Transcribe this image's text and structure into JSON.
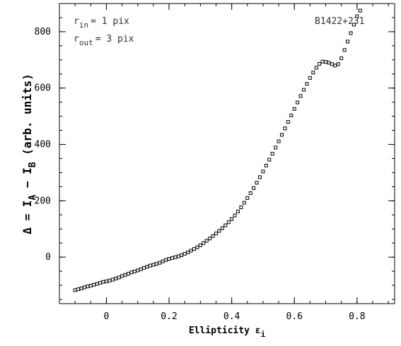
{
  "chart_data": {
    "type": "scatter",
    "annotations": {
      "r_in": {
        "main": "r",
        "sub": "in",
        "rest": "= 1 pix"
      },
      "r_out": {
        "main": "r",
        "sub": "out",
        "rest": "= 3 pix"
      },
      "object": "B1422+231"
    },
    "xlabel": {
      "main": "Ellipticity ε",
      "sub": "i"
    },
    "ylabel": {
      "p1": "Δ = I",
      "s1": "A",
      "p2": " − I",
      "s2": "B",
      "p3": " (arb. units)"
    },
    "xlim": [
      -0.15,
      0.92
    ],
    "ylim": [
      -165,
      900
    ],
    "xticks": [
      0,
      0.2,
      0.4,
      0.6,
      0.8
    ],
    "xtick_labels": [
      "0",
      "0.2",
      "0.4",
      "0.6",
      "0.8"
    ],
    "yticks": [
      0,
      200,
      400,
      600,
      800
    ],
    "ytick_labels": [
      "0",
      "200",
      "400",
      "600",
      "800"
    ],
    "x_minor_step": 0.05,
    "y_minor_step": 50,
    "points": [
      [
        -0.1,
        -117
      ],
      [
        -0.09,
        -114
      ],
      [
        -0.08,
        -111
      ],
      [
        -0.07,
        -107
      ],
      [
        -0.06,
        -104
      ],
      [
        -0.05,
        -101
      ],
      [
        -0.04,
        -98
      ],
      [
        -0.03,
        -95
      ],
      [
        -0.02,
        -91
      ],
      [
        -0.01,
        -88
      ],
      [
        0.0,
        -86
      ],
      [
        0.01,
        -83
      ],
      [
        0.02,
        -80
      ],
      [
        0.03,
        -76
      ],
      [
        0.04,
        -72
      ],
      [
        0.05,
        -67
      ],
      [
        0.06,
        -63
      ],
      [
        0.07,
        -59
      ],
      [
        0.08,
        -54
      ],
      [
        0.09,
        -51
      ],
      [
        0.1,
        -47
      ],
      [
        0.11,
        -43
      ],
      [
        0.12,
        -38
      ],
      [
        0.13,
        -34
      ],
      [
        0.14,
        -30
      ],
      [
        0.15,
        -27
      ],
      [
        0.16,
        -24
      ],
      [
        0.17,
        -20
      ],
      [
        0.18,
        -15
      ],
      [
        0.19,
        -10
      ],
      [
        0.2,
        -6
      ],
      [
        0.21,
        -3
      ],
      [
        0.22,
        0
      ],
      [
        0.23,
        3
      ],
      [
        0.24,
        7
      ],
      [
        0.25,
        12
      ],
      [
        0.26,
        17
      ],
      [
        0.27,
        23
      ],
      [
        0.28,
        29
      ],
      [
        0.29,
        35
      ],
      [
        0.3,
        42
      ],
      [
        0.31,
        50
      ],
      [
        0.32,
        58
      ],
      [
        0.33,
        66
      ],
      [
        0.34,
        75
      ],
      [
        0.35,
        84
      ],
      [
        0.36,
        93
      ],
      [
        0.37,
        103
      ],
      [
        0.38,
        113
      ],
      [
        0.39,
        124
      ],
      [
        0.4,
        135
      ],
      [
        0.41,
        148
      ],
      [
        0.42,
        162
      ],
      [
        0.43,
        177
      ],
      [
        0.44,
        193
      ],
      [
        0.45,
        210
      ],
      [
        0.46,
        227
      ],
      [
        0.47,
        245
      ],
      [
        0.48,
        264
      ],
      [
        0.49,
        284
      ],
      [
        0.5,
        304
      ],
      [
        0.51,
        325
      ],
      [
        0.52,
        346
      ],
      [
        0.53,
        367
      ],
      [
        0.54,
        389
      ],
      [
        0.55,
        411
      ],
      [
        0.56,
        434
      ],
      [
        0.57,
        457
      ],
      [
        0.58,
        480
      ],
      [
        0.59,
        503
      ],
      [
        0.6,
        526
      ],
      [
        0.61,
        549
      ],
      [
        0.62,
        572
      ],
      [
        0.63,
        594
      ],
      [
        0.64,
        615
      ],
      [
        0.65,
        636
      ],
      [
        0.66,
        655
      ],
      [
        0.67,
        672
      ],
      [
        0.68,
        686
      ],
      [
        0.69,
        694
      ],
      [
        0.7,
        693
      ],
      [
        0.71,
        690
      ],
      [
        0.72,
        685
      ],
      [
        0.73,
        680
      ],
      [
        0.74,
        685
      ],
      [
        0.75,
        706
      ],
      [
        0.76,
        735
      ],
      [
        0.77,
        765
      ],
      [
        0.78,
        795
      ],
      [
        0.79,
        825
      ],
      [
        0.8,
        855
      ],
      [
        0.81,
        875
      ]
    ]
  }
}
